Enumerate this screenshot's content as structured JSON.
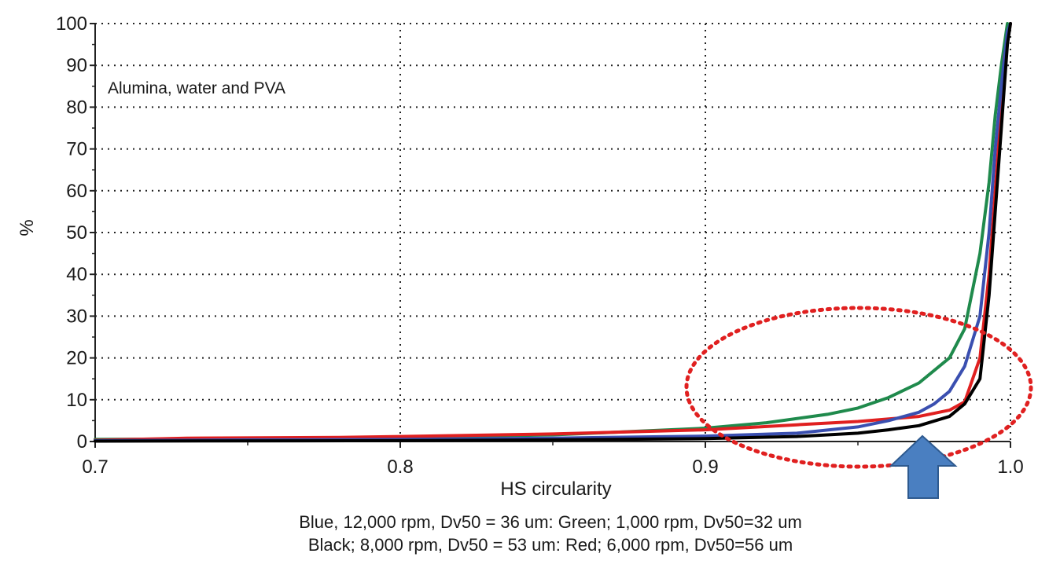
{
  "chart_data": {
    "type": "line",
    "annotation": "Alumina, water and PVA",
    "xlabel": "HS circularity",
    "ylabel": "%",
    "xlim": [
      0.7,
      1.0
    ],
    "ylim": [
      0,
      100
    ],
    "x_ticks": [
      "0.7",
      "0.8",
      "0.9",
      "1.0"
    ],
    "y_ticks": [
      "0",
      "10",
      "20",
      "30",
      "40",
      "50",
      "60",
      "70",
      "80",
      "90",
      "100"
    ],
    "grid": true,
    "caption_lines": [
      "Blue, 12,000 rpm, Dv50 = 36 um: Green; 1,000 rpm, Dv50=32 um",
      "Black; 8,000 rpm, Dv50 = 53 um: Red; 6,000 rpm, Dv50=56 um"
    ],
    "series": [
      {
        "color": "#1f8a4c",
        "points": [
          [
            0.7,
            0.5
          ],
          [
            0.75,
            0.7
          ],
          [
            0.8,
            1.0
          ],
          [
            0.85,
            1.6
          ],
          [
            0.87,
            2.2
          ],
          [
            0.9,
            3.2
          ],
          [
            0.92,
            4.5
          ],
          [
            0.94,
            6.5
          ],
          [
            0.95,
            8.0
          ],
          [
            0.96,
            10.5
          ],
          [
            0.97,
            14.0
          ],
          [
            0.98,
            20.0
          ],
          [
            0.985,
            27.0
          ],
          [
            0.99,
            45.0
          ],
          [
            0.993,
            62.0
          ],
          [
            0.995,
            78.0
          ],
          [
            0.997,
            90.0
          ],
          [
            0.999,
            100
          ]
        ]
      },
      {
        "color": "#e02020",
        "points": [
          [
            0.7,
            0.3
          ],
          [
            0.73,
            0.8
          ],
          [
            0.78,
            1.0
          ],
          [
            0.8,
            1.2
          ],
          [
            0.85,
            1.8
          ],
          [
            0.9,
            2.8
          ],
          [
            0.93,
            4.0
          ],
          [
            0.95,
            4.8
          ],
          [
            0.97,
            6.0
          ],
          [
            0.98,
            7.5
          ],
          [
            0.985,
            9.5
          ],
          [
            0.99,
            20.0
          ],
          [
            0.993,
            40.0
          ],
          [
            0.995,
            60.0
          ],
          [
            0.997,
            80.0
          ],
          [
            0.998,
            92.0
          ],
          [
            1.0,
            100
          ]
        ]
      },
      {
        "color": "#3a4fb0",
        "points": [
          [
            0.7,
            0.2
          ],
          [
            0.75,
            0.4
          ],
          [
            0.8,
            0.5
          ],
          [
            0.85,
            0.8
          ],
          [
            0.9,
            1.3
          ],
          [
            0.93,
            2.0
          ],
          [
            0.95,
            3.5
          ],
          [
            0.96,
            5.0
          ],
          [
            0.97,
            7.0
          ],
          [
            0.975,
            9.0
          ],
          [
            0.98,
            12.0
          ],
          [
            0.985,
            18.0
          ],
          [
            0.99,
            30.0
          ],
          [
            0.993,
            50.0
          ],
          [
            0.995,
            70.0
          ],
          [
            0.997,
            85.0
          ],
          [
            0.999,
            98.0
          ],
          [
            1.0,
            100
          ]
        ]
      },
      {
        "color": "#000000",
        "points": [
          [
            0.7,
            0.1
          ],
          [
            0.8,
            0.2
          ],
          [
            0.85,
            0.4
          ],
          [
            0.9,
            0.7
          ],
          [
            0.93,
            1.2
          ],
          [
            0.95,
            2.0
          ],
          [
            0.96,
            2.8
          ],
          [
            0.97,
            3.8
          ],
          [
            0.98,
            6.0
          ],
          [
            0.985,
            9.0
          ],
          [
            0.99,
            15.0
          ],
          [
            0.993,
            35.0
          ],
          [
            0.995,
            55.0
          ],
          [
            0.997,
            75.0
          ],
          [
            0.998,
            85.0
          ],
          [
            0.999,
            95.0
          ],
          [
            1.0,
            100
          ]
        ]
      }
    ],
    "highlight_ellipse_color": "#e02020",
    "arrow_color": "#4a7fc1"
  }
}
